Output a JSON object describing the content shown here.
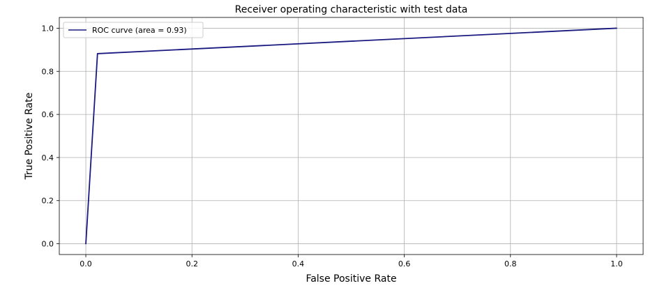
{
  "chart_data": {
    "type": "line",
    "title": "Receiver operating characteristic with test data",
    "xlabel": "False Positive Rate",
    "ylabel": "True Positive Rate",
    "xlim": [
      -0.05,
      1.05
    ],
    "ylim": [
      -0.05,
      1.05
    ],
    "xticks": [
      0.0,
      0.2,
      0.4,
      0.6,
      0.8,
      1.0
    ],
    "xtick_labels": [
      "0.0",
      "0.2",
      "0.4",
      "0.6",
      "0.8",
      "1.0"
    ],
    "yticks": [
      0.0,
      0.2,
      0.4,
      0.6,
      0.8,
      1.0
    ],
    "ytick_labels": [
      "0.0",
      "0.2",
      "0.4",
      "0.6",
      "0.8",
      "1.0"
    ],
    "grid": true,
    "legend_position": "top-left",
    "series": [
      {
        "name": "ROC curve (area = 0.93)",
        "color": "#191980",
        "x": [
          0.0,
          0.022,
          1.0
        ],
        "y": [
          0.0,
          0.882,
          1.0
        ]
      }
    ]
  }
}
